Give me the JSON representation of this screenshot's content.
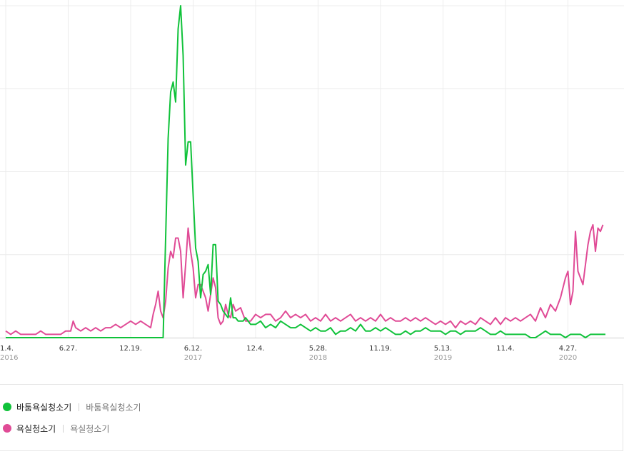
{
  "chart_data": {
    "type": "line",
    "xlabel": "",
    "ylabel": "",
    "grid": true,
    "x_ticks": [
      {
        "label": "1.4.",
        "year": "2016",
        "week": 0
      },
      {
        "label": "6.27.",
        "year": "",
        "week": 25
      },
      {
        "label": "12.19.",
        "year": "",
        "week": 50
      },
      {
        "label": "6.12.",
        "year": "2017",
        "week": 75
      },
      {
        "label": "12.4.",
        "year": "",
        "week": 100
      },
      {
        "label": "5.28.",
        "year": "2018",
        "week": 125
      },
      {
        "label": "11.19.",
        "year": "",
        "week": 150
      },
      {
        "label": "5.13.",
        "year": "2019",
        "week": 175
      },
      {
        "label": "11.4.",
        "year": "",
        "week": 200
      },
      {
        "label": "4.27.",
        "year": "2020",
        "week": 225
      }
    ],
    "series": [
      {
        "name": "바툼욕실청소기",
        "color": "#10c23a",
        "points": [
          [
            0,
            0
          ],
          [
            10,
            0
          ],
          [
            20,
            0
          ],
          [
            30,
            0
          ],
          [
            40,
            0
          ],
          [
            50,
            0
          ],
          [
            60,
            0
          ],
          [
            63,
            0
          ],
          [
            64,
            30
          ],
          [
            65,
            60
          ],
          [
            66,
            74
          ],
          [
            67,
            77
          ],
          [
            68,
            71
          ],
          [
            69,
            93
          ],
          [
            70,
            100
          ],
          [
            71,
            85
          ],
          [
            72,
            52
          ],
          [
            73,
            59
          ],
          [
            74,
            59
          ],
          [
            75,
            43
          ],
          [
            76,
            27
          ],
          [
            77,
            23
          ],
          [
            78,
            12
          ],
          [
            79,
            19
          ],
          [
            80,
            20
          ],
          [
            81,
            22
          ],
          [
            82,
            13
          ],
          [
            83,
            28
          ],
          [
            84,
            28
          ],
          [
            85,
            11
          ],
          [
            86,
            10
          ],
          [
            87,
            8
          ],
          [
            88,
            7
          ],
          [
            89,
            6
          ],
          [
            90,
            12
          ],
          [
            91,
            6
          ],
          [
            92,
            6
          ],
          [
            93,
            5
          ],
          [
            94,
            5
          ],
          [
            95,
            5
          ],
          [
            96,
            6
          ],
          [
            98,
            4
          ],
          [
            100,
            4
          ],
          [
            102,
            5
          ],
          [
            104,
            3
          ],
          [
            106,
            4
          ],
          [
            108,
            3
          ],
          [
            110,
            5
          ],
          [
            112,
            4
          ],
          [
            114,
            3
          ],
          [
            116,
            3
          ],
          [
            118,
            4
          ],
          [
            120,
            3
          ],
          [
            122,
            2
          ],
          [
            124,
            3
          ],
          [
            126,
            2
          ],
          [
            128,
            2
          ],
          [
            130,
            3
          ],
          [
            132,
            1
          ],
          [
            134,
            2
          ],
          [
            136,
            2
          ],
          [
            138,
            3
          ],
          [
            140,
            2
          ],
          [
            142,
            4
          ],
          [
            144,
            2
          ],
          [
            146,
            2
          ],
          [
            148,
            3
          ],
          [
            150,
            2
          ],
          [
            152,
            3
          ],
          [
            154,
            2
          ],
          [
            156,
            1
          ],
          [
            158,
            1
          ],
          [
            160,
            2
          ],
          [
            162,
            1
          ],
          [
            164,
            2
          ],
          [
            166,
            2
          ],
          [
            168,
            3
          ],
          [
            170,
            2
          ],
          [
            172,
            2
          ],
          [
            174,
            2
          ],
          [
            176,
            1
          ],
          [
            178,
            2
          ],
          [
            180,
            2
          ],
          [
            182,
            1
          ],
          [
            184,
            2
          ],
          [
            186,
            2
          ],
          [
            188,
            2
          ],
          [
            190,
            3
          ],
          [
            192,
            2
          ],
          [
            194,
            1
          ],
          [
            196,
            1
          ],
          [
            198,
            2
          ],
          [
            200,
            1
          ],
          [
            202,
            1
          ],
          [
            204,
            1
          ],
          [
            206,
            1
          ],
          [
            208,
            1
          ],
          [
            210,
            0
          ],
          [
            212,
            0
          ],
          [
            214,
            1
          ],
          [
            216,
            2
          ],
          [
            218,
            1
          ],
          [
            220,
            1
          ],
          [
            222,
            1
          ],
          [
            224,
            0
          ],
          [
            226,
            1
          ],
          [
            228,
            1
          ],
          [
            230,
            1
          ],
          [
            232,
            0
          ],
          [
            234,
            1
          ],
          [
            236,
            1
          ],
          [
            238,
            1
          ],
          [
            240,
            1
          ]
        ]
      },
      {
        "name": "욕실청소기",
        "color": "#e04b96",
        "points": [
          [
            0,
            2
          ],
          [
            2,
            1
          ],
          [
            4,
            2
          ],
          [
            6,
            1
          ],
          [
            8,
            1
          ],
          [
            10,
            1
          ],
          [
            12,
            1
          ],
          [
            14,
            2
          ],
          [
            16,
            1
          ],
          [
            18,
            1
          ],
          [
            20,
            1
          ],
          [
            22,
            1
          ],
          [
            24,
            2
          ],
          [
            26,
            2
          ],
          [
            27,
            5
          ],
          [
            28,
            3
          ],
          [
            30,
            2
          ],
          [
            32,
            3
          ],
          [
            34,
            2
          ],
          [
            36,
            3
          ],
          [
            38,
            2
          ],
          [
            40,
            3
          ],
          [
            42,
            3
          ],
          [
            44,
            4
          ],
          [
            46,
            3
          ],
          [
            48,
            4
          ],
          [
            50,
            5
          ],
          [
            52,
            4
          ],
          [
            54,
            5
          ],
          [
            56,
            4
          ],
          [
            58,
            3
          ],
          [
            59,
            7
          ],
          [
            60,
            10
          ],
          [
            61,
            14
          ],
          [
            62,
            8
          ],
          [
            63,
            6
          ],
          [
            64,
            11
          ],
          [
            65,
            21
          ],
          [
            66,
            26
          ],
          [
            67,
            24
          ],
          [
            68,
            30
          ],
          [
            69,
            30
          ],
          [
            70,
            26
          ],
          [
            71,
            12
          ],
          [
            72,
            22
          ],
          [
            73,
            33
          ],
          [
            74,
            26
          ],
          [
            75,
            21
          ],
          [
            76,
            12
          ],
          [
            77,
            16
          ],
          [
            78,
            16
          ],
          [
            79,
            14
          ],
          [
            80,
            12
          ],
          [
            81,
            8
          ],
          [
            82,
            13
          ],
          [
            83,
            18
          ],
          [
            84,
            15
          ],
          [
            85,
            6
          ],
          [
            86,
            4
          ],
          [
            87,
            5
          ],
          [
            88,
            10
          ],
          [
            89,
            7
          ],
          [
            90,
            6
          ],
          [
            91,
            10
          ],
          [
            92,
            8
          ],
          [
            94,
            9
          ],
          [
            96,
            5
          ],
          [
            98,
            5
          ],
          [
            100,
            7
          ],
          [
            102,
            6
          ],
          [
            104,
            7
          ],
          [
            106,
            7
          ],
          [
            108,
            5
          ],
          [
            110,
            6
          ],
          [
            112,
            8
          ],
          [
            114,
            6
          ],
          [
            116,
            7
          ],
          [
            118,
            6
          ],
          [
            120,
            7
          ],
          [
            122,
            5
          ],
          [
            124,
            6
          ],
          [
            126,
            5
          ],
          [
            128,
            7
          ],
          [
            130,
            5
          ],
          [
            132,
            6
          ],
          [
            134,
            5
          ],
          [
            136,
            6
          ],
          [
            138,
            7
          ],
          [
            140,
            5
          ],
          [
            142,
            6
          ],
          [
            144,
            5
          ],
          [
            146,
            6
          ],
          [
            148,
            5
          ],
          [
            150,
            7
          ],
          [
            152,
            5
          ],
          [
            154,
            6
          ],
          [
            156,
            5
          ],
          [
            158,
            5
          ],
          [
            160,
            6
          ],
          [
            162,
            5
          ],
          [
            164,
            6
          ],
          [
            166,
            5
          ],
          [
            168,
            6
          ],
          [
            170,
            5
          ],
          [
            172,
            4
          ],
          [
            174,
            5
          ],
          [
            176,
            4
          ],
          [
            178,
            5
          ],
          [
            180,
            3
          ],
          [
            182,
            5
          ],
          [
            184,
            4
          ],
          [
            186,
            5
          ],
          [
            188,
            4
          ],
          [
            190,
            6
          ],
          [
            192,
            5
          ],
          [
            194,
            4
          ],
          [
            196,
            6
          ],
          [
            198,
            4
          ],
          [
            200,
            6
          ],
          [
            202,
            5
          ],
          [
            204,
            6
          ],
          [
            206,
            5
          ],
          [
            208,
            6
          ],
          [
            210,
            7
          ],
          [
            212,
            5
          ],
          [
            214,
            9
          ],
          [
            216,
            6
          ],
          [
            218,
            10
          ],
          [
            220,
            8
          ],
          [
            222,
            12
          ],
          [
            224,
            18
          ],
          [
            225,
            20
          ],
          [
            226,
            10
          ],
          [
            227,
            14
          ],
          [
            228,
            32
          ],
          [
            229,
            20
          ],
          [
            230,
            18
          ],
          [
            231,
            16
          ],
          [
            232,
            22
          ],
          [
            233,
            28
          ],
          [
            234,
            32
          ],
          [
            235,
            34
          ],
          [
            236,
            26
          ],
          [
            237,
            33
          ],
          [
            238,
            32
          ],
          [
            239,
            34
          ]
        ]
      }
    ]
  },
  "legend": {
    "items": [
      {
        "name": "바툼욕실청소기",
        "sub": "바툼욕실청소기",
        "color": "#10c23a"
      },
      {
        "name": "욕실청소기",
        "sub": "욕실청소기",
        "color": "#e04b96"
      }
    ]
  }
}
